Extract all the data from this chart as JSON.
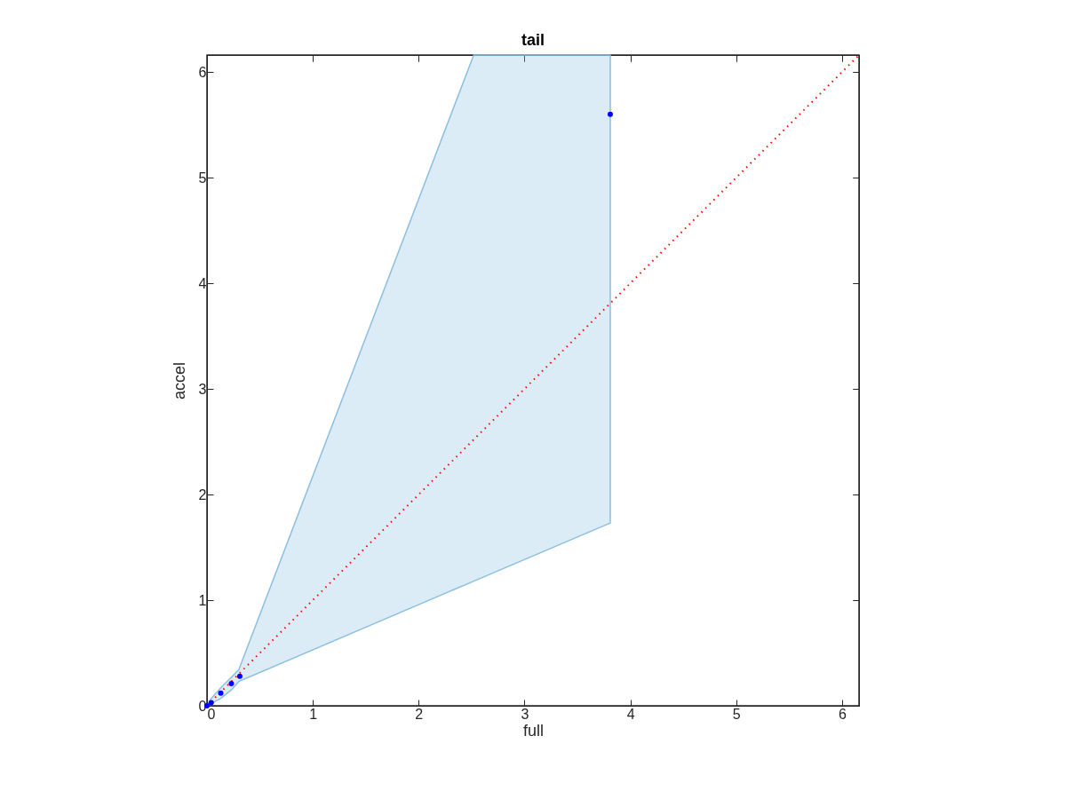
{
  "chart_data": {
    "type": "scatter",
    "title": "tail",
    "xlabel": "full",
    "ylabel": "accel",
    "xlim": [
      0,
      6.16
    ],
    "ylim": [
      0,
      6.16
    ],
    "xticks": [
      0,
      1,
      2,
      3,
      4,
      5,
      6
    ],
    "yticks": [
      0,
      1,
      2,
      3,
      4,
      5,
      6
    ],
    "grid": false,
    "series": [
      {
        "type": "area",
        "color": "#8bbfe0",
        "values": [
          null,
          null,
          null,
          null,
          null,
          null,
          null
        ],
        "x": [
          0,
          0.04,
          0.13,
          0.23,
          0.3,
          2.52,
          3.81
        ],
        "lower": [
          0,
          0.02,
          0.07,
          0.15,
          0.23,
          1.18,
          1.73
        ],
        "upper": [
          0,
          0.07,
          0.17,
          0.27,
          0.34,
          6.16,
          6.16
        ]
      },
      {
        "type": "line",
        "color": "#ff0000",
        "line_style": "dotted",
        "x": [
          0,
          6.16
        ],
        "values": [
          0,
          6.16
        ]
      },
      {
        "type": "scatter",
        "color": "#0000ff",
        "marker": "circle",
        "x": [
          0,
          0.04,
          0.13,
          0.23,
          0.31,
          3.81
        ],
        "values": [
          0,
          0.03,
          0.12,
          0.21,
          0.28,
          5.6
        ]
      }
    ]
  }
}
